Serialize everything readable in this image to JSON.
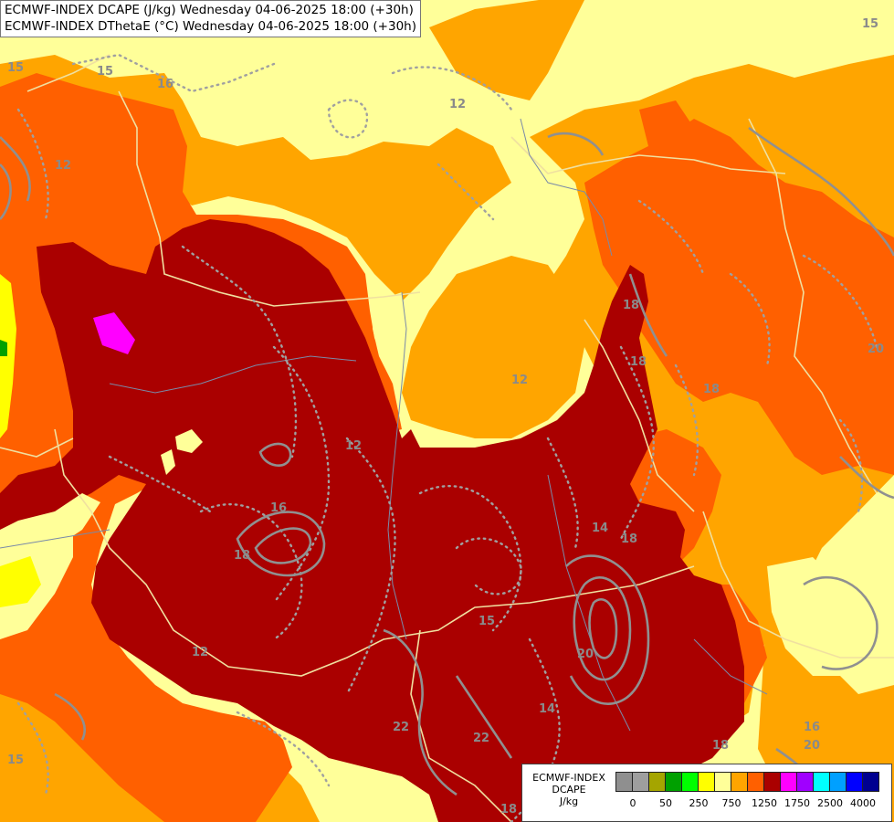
{
  "title": {
    "line1": "ECMWF-INDEX DCAPE (J/kg) Wednesday 04-06-2025 18:00 (+30h)",
    "line2": "ECMWF-INDEX DThetaE (°C) Wednesday 04-06-2025 18:00 (+30h)"
  },
  "legend": {
    "model": "ECMWF-INDEX",
    "parameter": "DCAPE",
    "unit": "J/kg",
    "colors": [
      "#8f8f8f",
      "#9e9e9e",
      "#a5a500",
      "#00a000",
      "#00ff00",
      "#ffff00",
      "#ffff99",
      "#ffa500",
      "#ff6000",
      "#aa0000",
      "#ff00ff",
      "#a000ff",
      "#00ffff",
      "#00a0ff",
      "#0000ff",
      "#000090"
    ],
    "ticks": [
      {
        "label": "0",
        "at": 1
      },
      {
        "label": "50",
        "at": 3
      },
      {
        "label": "250",
        "at": 5
      },
      {
        "label": "750",
        "at": 7
      },
      {
        "label": "1250",
        "at": 9
      },
      {
        "label": "1750",
        "at": 11
      },
      {
        "label": "2500",
        "at": 13
      },
      {
        "label": "4000",
        "at": 15
      }
    ]
  },
  "map": {
    "fill_colors": {
      "light_yellow": "#ffff99",
      "orange": "#ffa500",
      "dark_orange": "#ff6000",
      "dark_red": "#aa0000",
      "magenta": "#ff00ff",
      "yellow": "#ffff00",
      "green": "#00a000"
    },
    "contour_labels": [
      {
        "text": "15"
      },
      {
        "text": "16"
      },
      {
        "text": "12"
      },
      {
        "text": "15"
      },
      {
        "text": "18"
      },
      {
        "text": "12"
      },
      {
        "text": "12"
      },
      {
        "text": "16"
      },
      {
        "text": "18"
      },
      {
        "text": "12"
      },
      {
        "text": "18"
      },
      {
        "text": "15"
      },
      {
        "text": "14"
      },
      {
        "text": "18"
      },
      {
        "text": "20"
      },
      {
        "text": "22"
      },
      {
        "text": "22"
      },
      {
        "text": "14"
      },
      {
        "text": "18"
      },
      {
        "text": "15"
      },
      {
        "text": "15"
      },
      {
        "text": "20"
      },
      {
        "text": "18"
      },
      {
        "text": "16"
      },
      {
        "text": "12"
      },
      {
        "text": "20"
      },
      {
        "text": "18"
      }
    ]
  }
}
